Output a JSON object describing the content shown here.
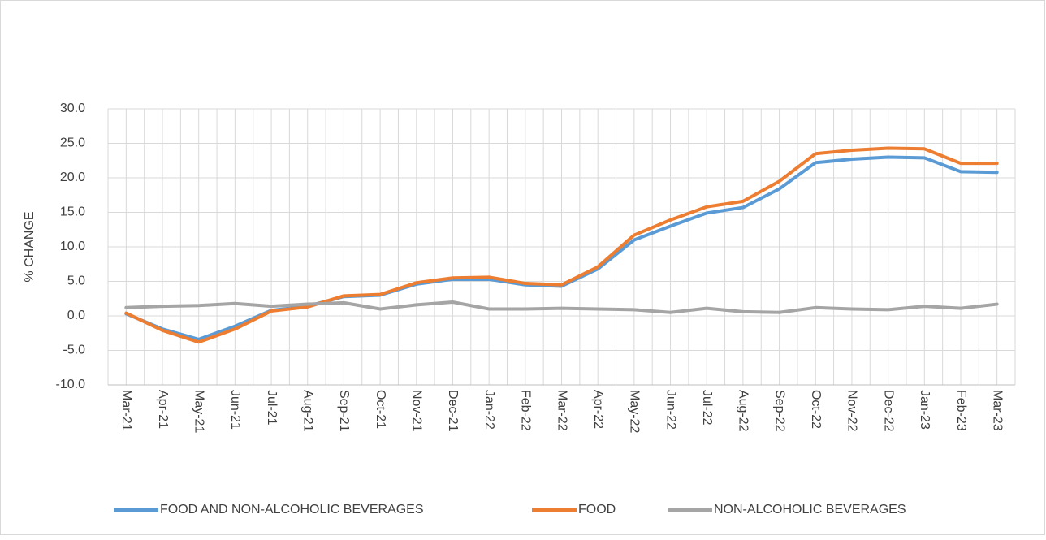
{
  "chart_data": {
    "type": "line",
    "y_axis_label": "% CHANGE",
    "categories": [
      "Mar-21",
      "Apr-21",
      "May-21",
      "Jun-21",
      "Jul-21",
      "Aug-21",
      "Sep-21",
      "Oct-21",
      "Nov-21",
      "Dec-21",
      "Jan-22",
      "Feb-22",
      "Mar-22",
      "Apr-22",
      "May-22",
      "Jun-22",
      "Jul-22",
      "Aug-22",
      "Sep-22",
      "Oct-22",
      "Nov-22",
      "Dec-22",
      "Jan-23",
      "Feb-23",
      "Mar-23"
    ],
    "series": [
      {
        "name": "FOOD AND NON-ALCOHOLIC BEVERAGES",
        "color": "#5b9bd5",
        "values": [
          0.3,
          -1.9,
          -3.4,
          -1.5,
          0.8,
          1.4,
          2.8,
          3.0,
          4.6,
          5.3,
          5.3,
          4.5,
          4.3,
          6.8,
          11.0,
          13.0,
          14.9,
          15.7,
          18.4,
          22.2,
          22.7,
          23.0,
          22.9,
          20.9,
          20.8
        ]
      },
      {
        "name": "FOOD",
        "color": "#ed7d31",
        "values": [
          0.4,
          -2.1,
          -3.8,
          -1.9,
          0.7,
          1.3,
          2.9,
          3.1,
          4.8,
          5.5,
          5.6,
          4.7,
          4.5,
          7.1,
          11.7,
          13.9,
          15.8,
          16.6,
          19.5,
          23.5,
          24.0,
          24.3,
          24.2,
          22.1,
          22.1
        ]
      },
      {
        "name": "NON-ALCOHOLIC BEVERAGES",
        "color": "#a5a5a5",
        "values": [
          1.2,
          1.4,
          1.5,
          1.8,
          1.4,
          1.7,
          1.9,
          1.0,
          1.6,
          2.0,
          1.0,
          1.0,
          1.1,
          1.0,
          0.9,
          0.5,
          1.1,
          0.6,
          0.5,
          1.2,
          1.0,
          0.9,
          1.4,
          1.1,
          1.7
        ]
      }
    ],
    "ylim": [
      -10,
      30
    ],
    "yticks": [
      {
        "value": -10,
        "label": "-10.0"
      },
      {
        "value": -5,
        "label": "-5.0"
      },
      {
        "value": 0,
        "label": "0.0"
      },
      {
        "value": 5,
        "label": "5.0"
      },
      {
        "value": 10,
        "label": "10.0"
      },
      {
        "value": 15,
        "label": "15.0"
      },
      {
        "value": 20,
        "label": "20.0"
      },
      {
        "value": 25,
        "label": "25.0"
      },
      {
        "value": 30,
        "label": "30.0"
      }
    ],
    "negative_tick_color": "#ff0000",
    "grid": true,
    "legend": "bottom"
  }
}
